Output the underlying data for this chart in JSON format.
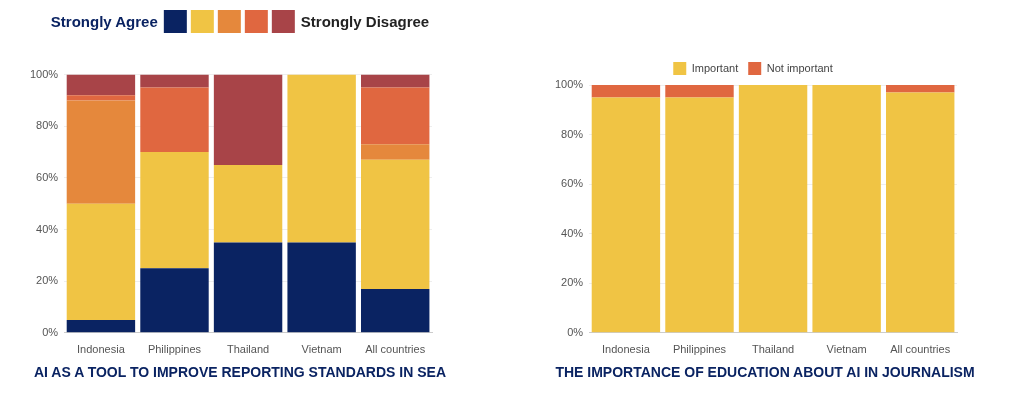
{
  "chart_data": [
    {
      "type": "bar",
      "title": "AI AS A TOOL TO IMPROVE REPORTING STANDARDS IN SEA",
      "categories": [
        "Indonesia",
        "Philippines",
        "Thailand",
        "Vietnam",
        "All countries"
      ],
      "stacked": true,
      "ylim": [
        0,
        100
      ],
      "yticks": [
        {
          "value": 0,
          "label": "0%"
        },
        {
          "value": 20,
          "label": "20%"
        },
        {
          "value": 40,
          "label": "40%"
        },
        {
          "value": 60,
          "label": "60%"
        },
        {
          "value": 80,
          "label": "80%"
        },
        {
          "value": 100,
          "label": "100%"
        }
      ],
      "grid": "y",
      "legend": "top",
      "series": [
        {
          "name": "Strongly Agree",
          "color": "#0a2362",
          "values": [
            5,
            25,
            35,
            35,
            17
          ]
        },
        {
          "color": "#f0c444",
          "values": [
            45,
            45,
            30,
            65,
            50
          ]
        },
        {
          "color": "#e5883c",
          "values": [
            40,
            0,
            0,
            0,
            6
          ]
        },
        {
          "color": "#e06740",
          "values": [
            2,
            25,
            0,
            0,
            22
          ]
        },
        {
          "name": "Strongly Disagree",
          "color": "#a84448",
          "values": [
            8,
            5,
            35,
            0,
            5
          ]
        }
      ]
    },
    {
      "type": "bar",
      "title": "THE IMPORTANCE OF EDUCATION ABOUT AI IN JOURNALISM",
      "categories": [
        "Indonesia",
        "Philippines",
        "Thailand",
        "Vietnam",
        "All countries"
      ],
      "stacked": true,
      "ylim": [
        0,
        100
      ],
      "yticks": [
        {
          "value": 0,
          "label": "0%"
        },
        {
          "value": 20,
          "label": "20%"
        },
        {
          "value": 40,
          "label": "40%"
        },
        {
          "value": 60,
          "label": "60%"
        },
        {
          "value": 80,
          "label": "80%"
        },
        {
          "value": 100,
          "label": "100%"
        }
      ],
      "grid": "y",
      "legend": "top",
      "series": [
        {
          "name": "Important",
          "color": "#f0c444",
          "values": [
            95,
            95,
            100,
            100,
            97
          ]
        },
        {
          "name": "Not important",
          "color": "#e06740",
          "values": [
            5,
            5,
            0,
            0,
            3
          ]
        }
      ]
    }
  ]
}
